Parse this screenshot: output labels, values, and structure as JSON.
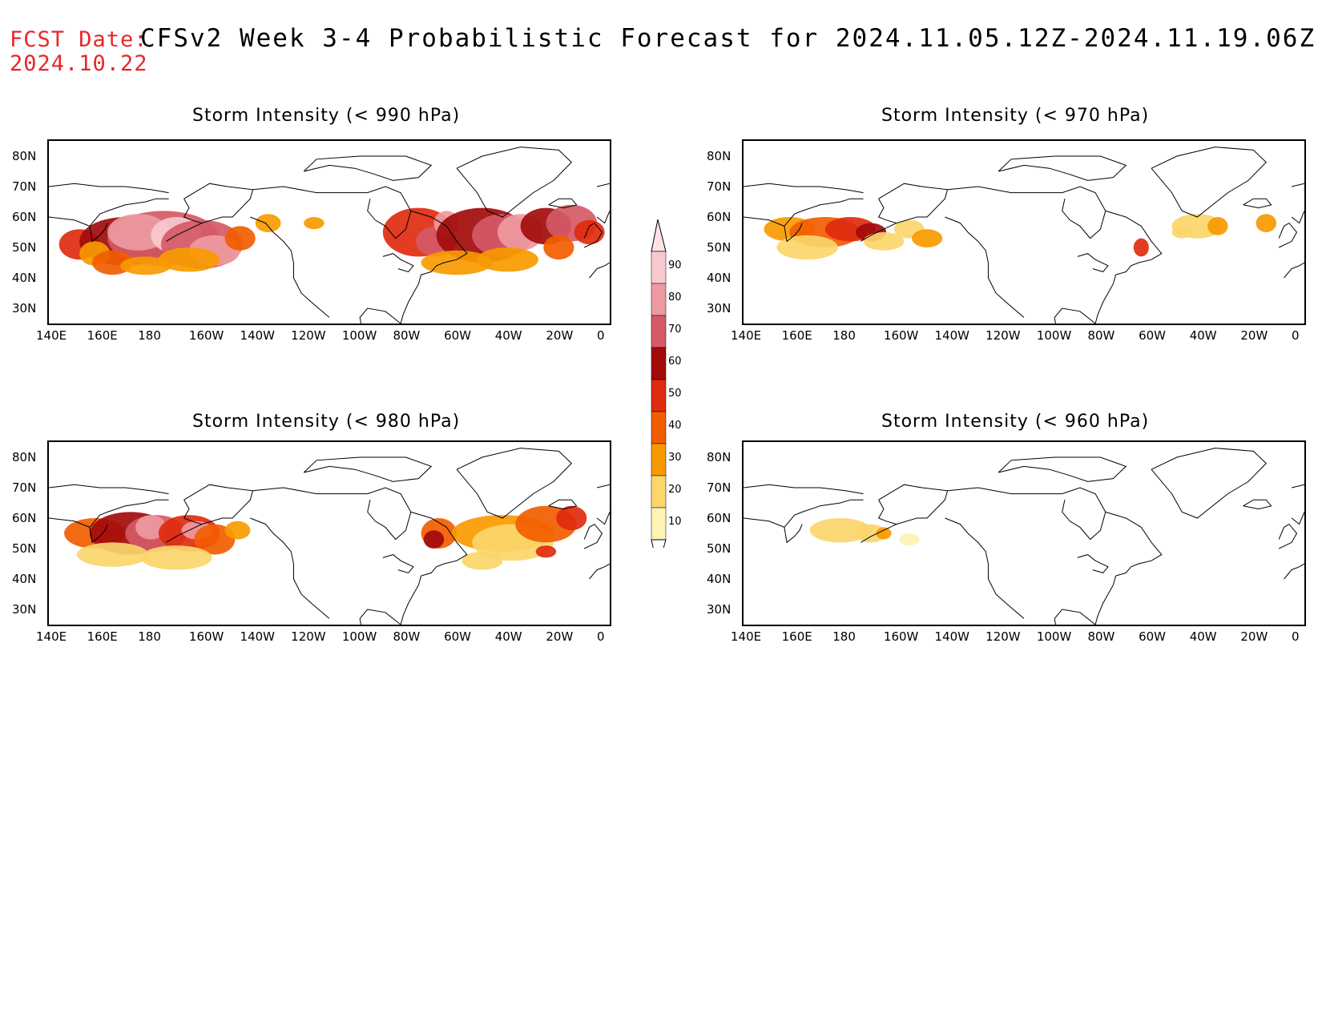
{
  "header": {
    "fcst_label": "FCST Date:",
    "fcst_date": "2024.10.22",
    "title": "CFSv2 Week 3-4 Probabilistic Forecast for 2024.11.05.12Z-2024.11.19.06Z"
  },
  "axes": {
    "x_ticks": [
      "140E",
      "160E",
      "180",
      "160W",
      "140W",
      "120W",
      "100W",
      "80W",
      "60W",
      "40W",
      "20W",
      "0"
    ],
    "y_ticks": [
      "80N",
      "70N",
      "60N",
      "50N",
      "40N",
      "30N"
    ]
  },
  "colorbar": {
    "levels": [
      "90",
      "80",
      "70",
      "60",
      "50",
      "40",
      "30",
      "20",
      "10"
    ],
    "colors": [
      "#f7c9cf",
      "#ee9aa2",
      "#d55a66",
      "#a30b0b",
      "#df2b0f",
      "#f25d00",
      "#f79a00",
      "#fbd66b",
      "#fef3b4"
    ]
  },
  "panels": [
    {
      "id": "p990",
      "title": "Storm Intensity (< 990 hPa)"
    },
    {
      "id": "p970",
      "title": "Storm Intensity (< 970 hPa)"
    },
    {
      "id": "p980",
      "title": "Storm Intensity (< 980 hPa)"
    },
    {
      "id": "p960",
      "title": "Storm Intensity (< 960 hPa)"
    }
  ]
}
